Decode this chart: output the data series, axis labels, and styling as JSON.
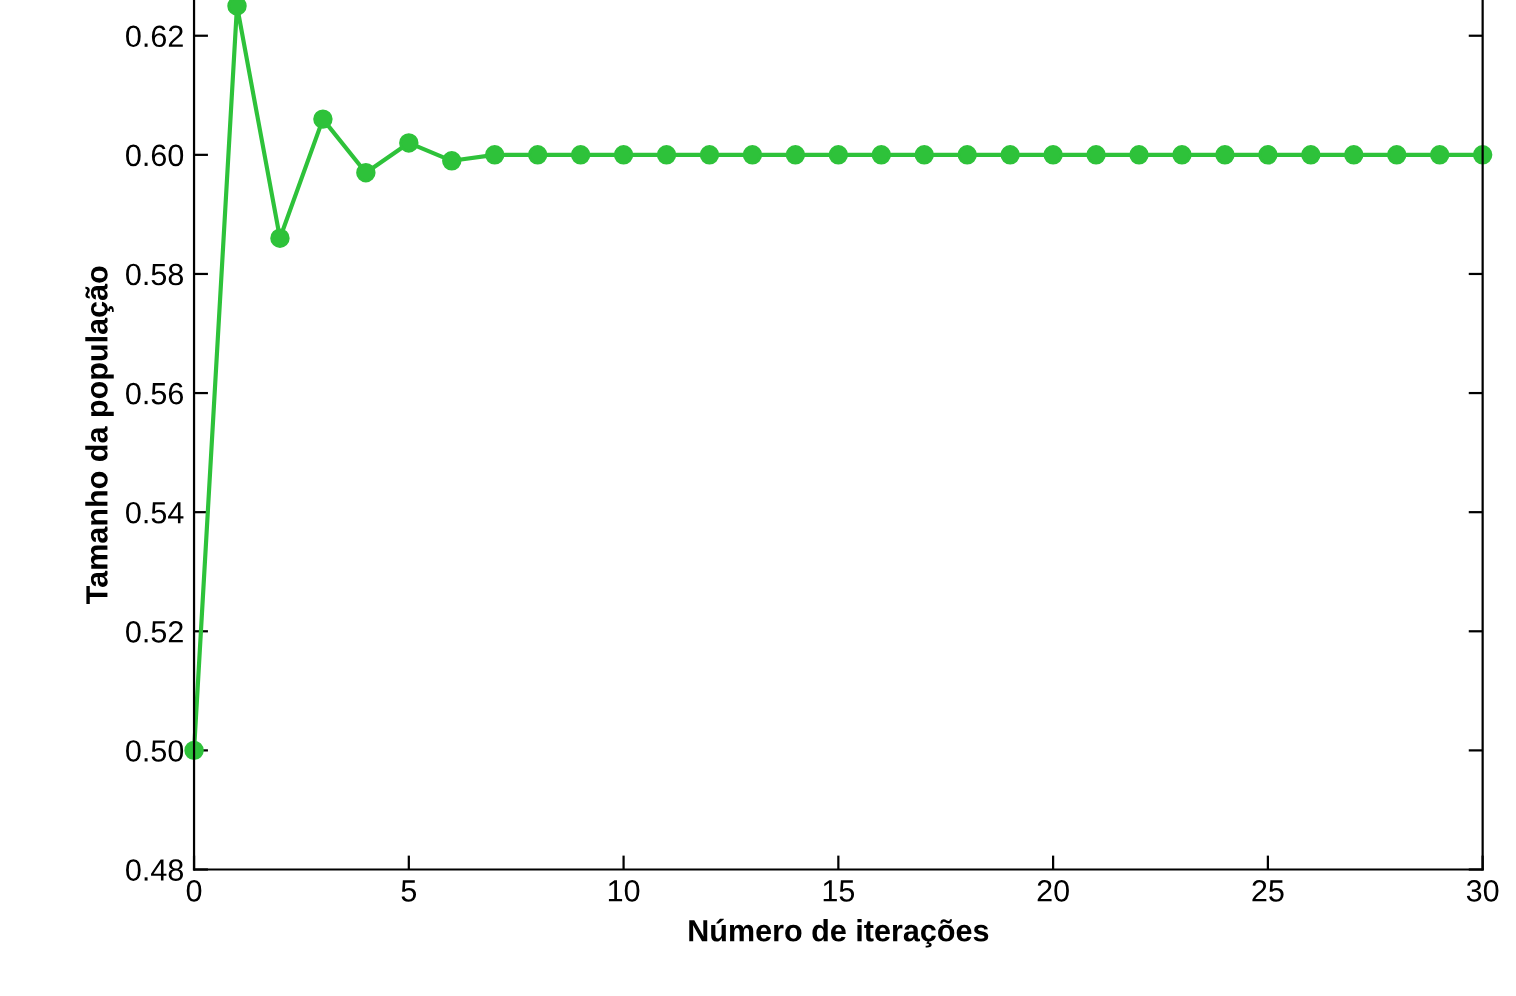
{
  "chart_data": {
    "type": "line",
    "xlabel": "Número de iterações",
    "ylabel": "Tamanho da população",
    "x": [
      0,
      1,
      2,
      3,
      4,
      5,
      6,
      7,
      8,
      9,
      10,
      11,
      12,
      13,
      14,
      15,
      16,
      17,
      18,
      19,
      20,
      21,
      22,
      23,
      24,
      25,
      26,
      27,
      28,
      29,
      30
    ],
    "series": [
      {
        "color": "#2ec23a",
        "values": [
          0.5,
          0.625,
          0.586,
          0.606,
          0.597,
          0.602,
          0.599,
          0.6,
          0.6,
          0.6,
          0.6,
          0.6,
          0.6,
          0.6,
          0.6,
          0.6,
          0.6,
          0.6,
          0.6,
          0.6,
          0.6,
          0.6,
          0.6,
          0.6,
          0.6,
          0.6,
          0.6,
          0.6,
          0.6,
          0.6,
          0.6
        ]
      }
    ],
    "xlim": [
      0,
      30
    ],
    "xticks": [
      0,
      5,
      10,
      15,
      20,
      25,
      30
    ],
    "ylim": [
      0.48,
      0.626
    ],
    "yticks": [
      0.48,
      {
        "value": 0.5,
        "label": "0.50"
      },
      0.52,
      0.54,
      0.56,
      0.58,
      {
        "value": 0.6,
        "label": "0.60"
      },
      0.62
    ],
    "marker": "circle",
    "line_style": "solid",
    "grid": false,
    "legend": false
  }
}
